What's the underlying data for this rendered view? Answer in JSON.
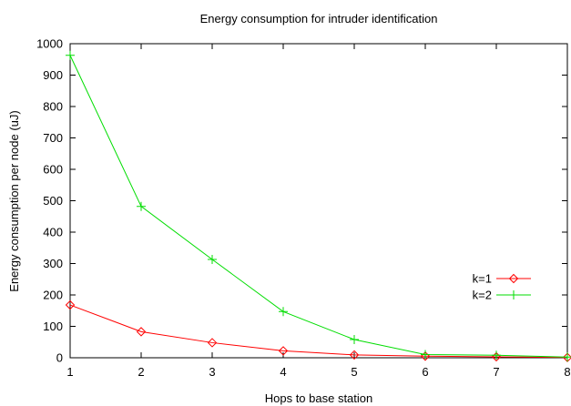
{
  "chart_data": {
    "type": "line",
    "title": "Energy consumption for intruder identification",
    "xlabel": "Hops to base station",
    "ylabel": "Energy consumption per node (uJ)",
    "xlim": [
      1,
      8
    ],
    "ylim": [
      0,
      1000
    ],
    "xticks": [
      "1",
      "2",
      "3",
      "4",
      "5",
      "6",
      "7",
      "8"
    ],
    "yticks": [
      "0",
      "100",
      "200",
      "300",
      "400",
      "500",
      "600",
      "700",
      "800",
      "900",
      "1000"
    ],
    "grid": false,
    "legend_position": "right",
    "x": [
      1,
      2,
      3,
      4,
      5,
      6,
      7,
      8
    ],
    "series": [
      {
        "name": "k=1",
        "color": "#ff0000",
        "marker": "diamond",
        "values": [
          168,
          83,
          48,
          22,
          9,
          5,
          3,
          1
        ]
      },
      {
        "name": "k=2",
        "color": "#00dd00",
        "marker": "plus",
        "values": [
          963,
          482,
          313,
          147,
          58,
          10,
          8,
          2
        ]
      }
    ]
  }
}
